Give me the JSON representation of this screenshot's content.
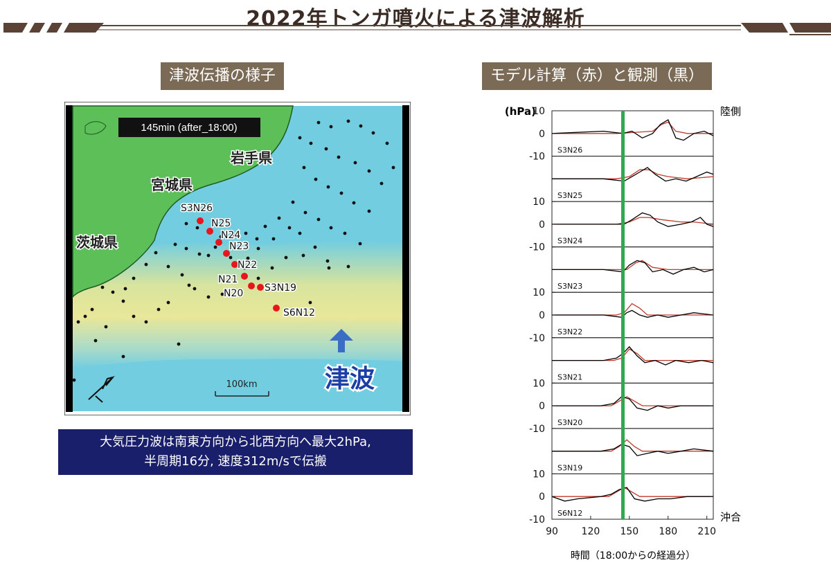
{
  "page": {
    "title": "2022年トンガ噴火による津波解析",
    "left_label": "津波伝播の様子",
    "right_label": "モデル計算（赤）と観測（黒）",
    "caption_line1": "大気圧力波は南東方向から北西方向へ最大2hPa,",
    "caption_line2": "半周期16分, 速度312m/sで伝搬"
  },
  "map": {
    "time_label": "145min (after_18:00)",
    "scale_label": "100km",
    "tsunami_label": "津波",
    "prefectures": [
      "岩手県",
      "宮城県",
      "茨城県"
    ],
    "stations": [
      "S3N26",
      "N25",
      "N24",
      "N23",
      "N22",
      "N21",
      "N20",
      "S3N19",
      "S6N12"
    ],
    "colors": {
      "land": "#5cbf57",
      "sea": "#72cde0",
      "wave_front": "#e8e69a",
      "station": "#e8161c"
    }
  },
  "chart_data": {
    "type": "line",
    "xlabel": "時間（18:00からの経過分）",
    "ylabel": "(hPa)",
    "x_ticks": [
      90,
      120,
      150,
      180,
      210
    ],
    "xlim": [
      90,
      215
    ],
    "y_ticks": [
      10,
      0,
      -10
    ],
    "ylim": [
      -10,
      10
    ],
    "marker_line_x": 145,
    "top_side_label": "陸側",
    "bottom_side_label": "沖合",
    "colors": {
      "model": "#c0392b",
      "observed": "#000000",
      "marker": "#2fa84f"
    },
    "series": [
      {
        "name": "S3N26",
        "model": {
          "x": [
            90,
            140,
            155,
            168,
            175,
            180,
            186,
            195,
            215
          ],
          "y": [
            0,
            0,
            0.5,
            1,
            4,
            5,
            1,
            0,
            0
          ]
        },
        "observed": {
          "x": [
            90,
            130,
            145,
            152,
            160,
            168,
            174,
            180,
            186,
            192,
            200,
            208,
            215
          ],
          "y": [
            0,
            1,
            0,
            1,
            -2,
            0,
            4,
            6,
            -2,
            -3,
            0,
            1,
            -1
          ]
        }
      },
      {
        "name": "S3N25",
        "model": {
          "x": [
            90,
            140,
            150,
            158,
            165,
            172,
            180,
            195,
            215
          ],
          "y": [
            0,
            0,
            1,
            4,
            4,
            2,
            1,
            0,
            1
          ]
        },
        "observed": {
          "x": [
            90,
            130,
            146,
            152,
            158,
            164,
            170,
            178,
            186,
            194,
            202,
            210,
            215
          ],
          "y": [
            0,
            0,
            -1,
            1,
            3,
            5,
            2,
            -1,
            0,
            -1,
            1,
            3,
            2
          ]
        }
      },
      {
        "name": "S3N24",
        "model": {
          "x": [
            90,
            140,
            150,
            158,
            165,
            175,
            190,
            200,
            215
          ],
          "y": [
            0,
            0,
            1,
            3,
            3,
            2,
            1,
            1,
            0
          ]
        },
        "observed": {
          "x": [
            90,
            130,
            146,
            152,
            160,
            166,
            172,
            180,
            190,
            198,
            205,
            210,
            215
          ],
          "y": [
            0,
            0,
            0,
            2,
            5,
            4,
            1,
            -1,
            0,
            1,
            3,
            0,
            -1
          ]
        }
      },
      {
        "name": "S3N23",
        "model": {
          "x": [
            90,
            140,
            148,
            155,
            160,
            168,
            180,
            215
          ],
          "y": [
            0,
            0,
            0,
            3,
            4,
            1,
            0,
            0
          ]
        },
        "observed": {
          "x": [
            90,
            130,
            145,
            150,
            156,
            162,
            168,
            176,
            184,
            192,
            200,
            208,
            215
          ],
          "y": [
            0,
            0,
            -1,
            2,
            4,
            3,
            -1,
            0,
            -2,
            0,
            1,
            -1,
            0
          ]
        }
      },
      {
        "name": "S3N22",
        "model": {
          "x": [
            90,
            140,
            146,
            152,
            158,
            164,
            175,
            215
          ],
          "y": [
            0,
            0,
            1,
            5,
            3,
            0,
            0,
            0
          ]
        },
        "observed": {
          "x": [
            90,
            130,
            144,
            148,
            152,
            158,
            164,
            172,
            180,
            190,
            200,
            215
          ],
          "y": [
            0,
            0,
            -1,
            1,
            2,
            0,
            -1,
            0,
            -1,
            0,
            1,
            0
          ]
        }
      },
      {
        "name": "S3N21",
        "model": {
          "x": [
            90,
            138,
            144,
            150,
            156,
            162,
            175,
            215
          ],
          "y": [
            0,
            0,
            1,
            5,
            3,
            0,
            0,
            0
          ]
        },
        "observed": {
          "x": [
            90,
            130,
            140,
            145,
            150,
            156,
            162,
            170,
            178,
            186,
            196,
            206,
            215
          ],
          "y": [
            0,
            0,
            1,
            3,
            6,
            2,
            -1,
            0,
            -2,
            0,
            -1,
            0,
            -1
          ]
        }
      },
      {
        "name": "S3N20",
        "model": {
          "x": [
            90,
            136,
            142,
            148,
            154,
            160,
            175,
            215
          ],
          "y": [
            0,
            0,
            2,
            4,
            2,
            0,
            0,
            0
          ]
        },
        "observed": {
          "x": [
            90,
            128,
            138,
            144,
            150,
            156,
            164,
            172,
            180,
            190,
            200,
            215
          ],
          "y": [
            0,
            0,
            1,
            4,
            3,
            -1,
            -2,
            0,
            -1,
            0,
            0,
            0
          ]
        }
      },
      {
        "name": "S3N19",
        "model": {
          "x": [
            90,
            136,
            142,
            148,
            154,
            160,
            175,
            215
          ],
          "y": [
            0,
            0,
            2,
            5,
            2,
            0,
            0,
            0
          ]
        },
        "observed": {
          "x": [
            90,
            128,
            138,
            144,
            150,
            156,
            164,
            172,
            180,
            190,
            200,
            215
          ],
          "y": [
            0,
            0,
            1,
            3,
            2,
            -2,
            -1,
            0,
            -1,
            0,
            1,
            0
          ]
        }
      },
      {
        "name": "S6N12",
        "model": {
          "x": [
            90,
            134,
            140,
            146,
            152,
            158,
            175,
            215
          ],
          "y": [
            0,
            0,
            2,
            4,
            2,
            0,
            0,
            0
          ]
        },
        "observed": {
          "x": [
            90,
            100,
            110,
            128,
            136,
            142,
            148,
            154,
            162,
            172,
            182,
            195,
            215
          ],
          "y": [
            0,
            -2,
            -1,
            0,
            1,
            3,
            4,
            -1,
            -2,
            -1,
            -1,
            0,
            0
          ]
        }
      }
    ]
  }
}
